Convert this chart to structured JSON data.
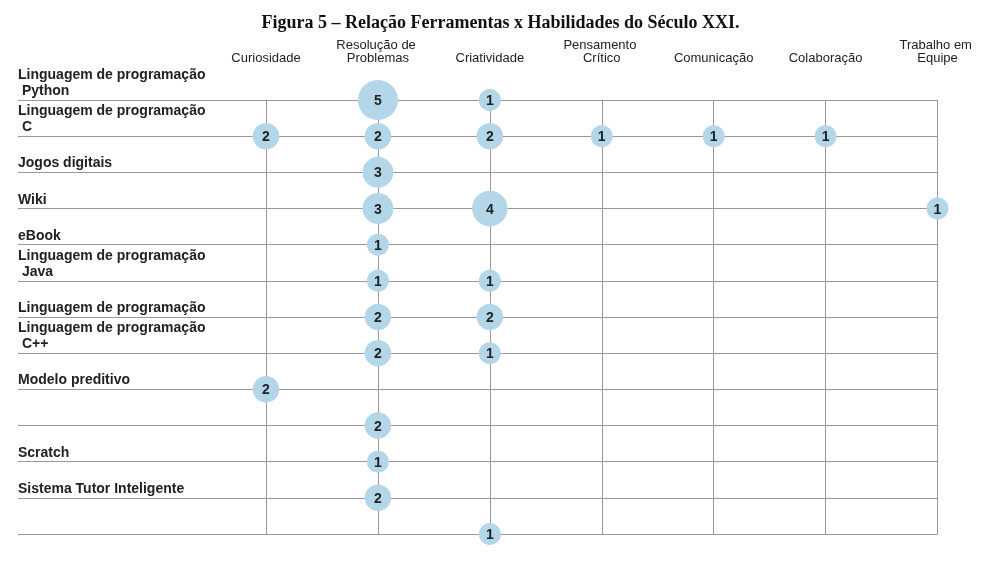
{
  "chart_data": {
    "type": "heatmap",
    "title": "Figura 5 – Relação Ferramentas x Habilidades do Século XXI.",
    "categories": [
      "Curiosidade",
      "Resolução de Problemas",
      "Criatividade",
      "Pensamento Crítico",
      "Comunicação",
      "Colaboração",
      "Trabalho em Equipe"
    ],
    "y_categories": [
      "Linguagem de programação Python",
      "Linguagem de programação C",
      "Jogos digitais",
      "Wiki",
      "eBook",
      "Linguagem de programação Java",
      "Linguagem de programação",
      "Linguagem de programação C++",
      "Modelo preditivo",
      null,
      "Scratch",
      "Sistema Tutor Inteligente",
      null
    ],
    "cells": [
      [
        null,
        5,
        1,
        null,
        null,
        null,
        null
      ],
      [
        2,
        2,
        2,
        1,
        1,
        1,
        null
      ],
      [
        null,
        3,
        null,
        null,
        null,
        null,
        null
      ],
      [
        null,
        3,
        4,
        null,
        null,
        null,
        1
      ],
      [
        null,
        1,
        null,
        null,
        null,
        null,
        null
      ],
      [
        null,
        1,
        1,
        null,
        null,
        null,
        null
      ],
      [
        null,
        2,
        2,
        null,
        null,
        null,
        null
      ],
      [
        null,
        2,
        1,
        null,
        null,
        null,
        null
      ],
      [
        2,
        null,
        null,
        null,
        null,
        null,
        null
      ],
      [
        null,
        2,
        null,
        null,
        null,
        null,
        null
      ],
      [
        null,
        1,
        null,
        null,
        null,
        null,
        null
      ],
      [
        null,
        2,
        null,
        null,
        null,
        null,
        null
      ],
      [
        null,
        null,
        1,
        null,
        null,
        null,
        null
      ]
    ],
    "color": "#b3d6e8",
    "data_labels": true,
    "grid": true
  }
}
